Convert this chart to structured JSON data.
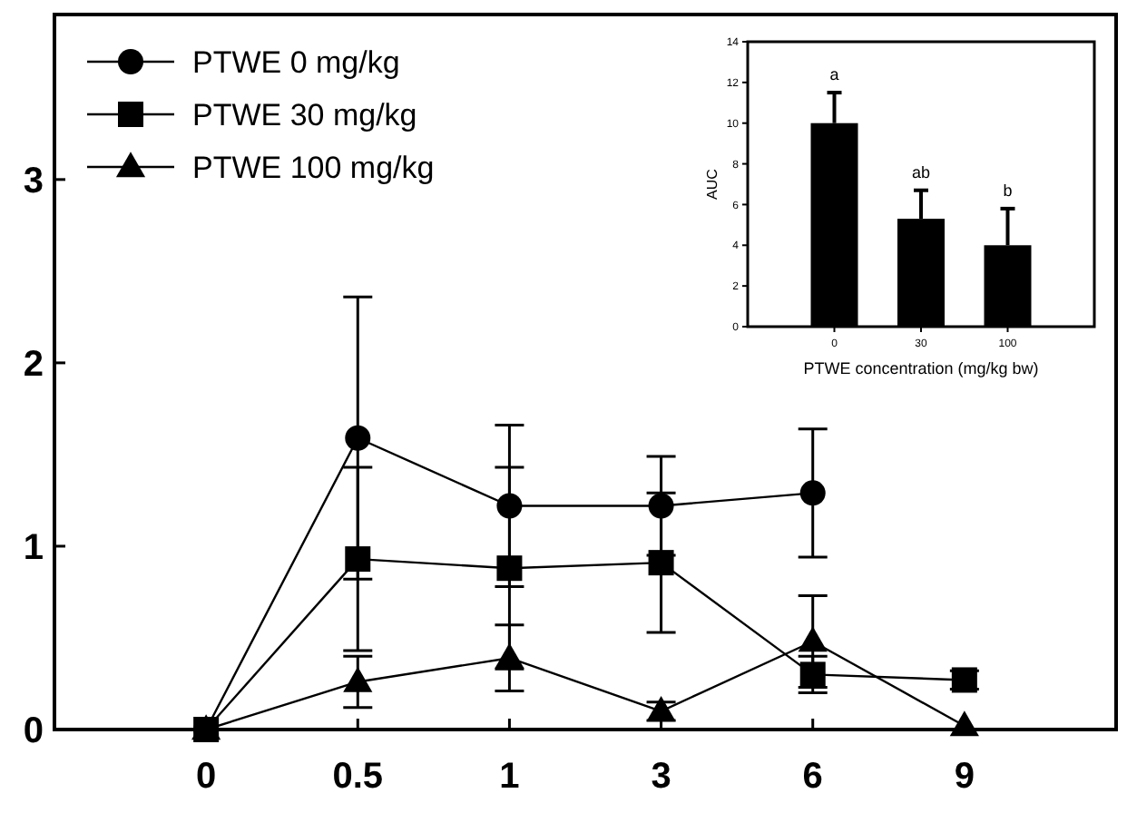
{
  "chart_data": [
    {
      "type": "line",
      "categories": [
        "0",
        "0.5",
        "1",
        "3",
        "6",
        "9"
      ],
      "ylim": [
        0,
        3.9
      ],
      "yticks": [
        0,
        1,
        2,
        3
      ],
      "legend": "top left",
      "series": [
        {
          "name": "PTWE 0 mg/kg",
          "color": "#000000",
          "marker": "circle",
          "values": [
            0,
            1.59,
            1.22,
            1.22,
            1.29,
            null
          ],
          "errors": [
            null,
            0.77,
            0.44,
            0.27,
            0.35,
            null
          ]
        },
        {
          "name": "PTWE 30 mg/kg",
          "color": "#000000",
          "marker": "square",
          "values": [
            0,
            0.93,
            0.88,
            0.91,
            0.3,
            0.27
          ],
          "errors": [
            null,
            0.5,
            0.55,
            0.38,
            0.1,
            0.05
          ]
        },
        {
          "name": "PTWE 100 mg/kg",
          "color": "#000000",
          "marker": "triangle",
          "values": [
            0,
            0.26,
            0.39,
            0.1,
            0.48,
            0.02
          ],
          "errors": [
            null,
            0.14,
            0.18,
            0.05,
            0.25,
            null
          ]
        }
      ]
    },
    {
      "type": "bar",
      "categories": [
        "0",
        "30",
        "100"
      ],
      "values": [
        10,
        5.3,
        4.0
      ],
      "errors": [
        1.5,
        1.4,
        1.8
      ],
      "color": "#000000",
      "ylim": [
        0,
        14
      ],
      "yticks": [
        0,
        2,
        4,
        6,
        8,
        10,
        12,
        14
      ],
      "xlabel": "PTWE concentration (mg/kg bw)",
      "ylabel": "AUC",
      "annotations": [
        {
          "text": "a",
          "x": "0",
          "y": 11.5
        },
        {
          "text": "ab",
          "x": "30",
          "y": 6.7
        },
        {
          "text": "b",
          "x": "100",
          "y": 5.8
        }
      ]
    }
  ]
}
